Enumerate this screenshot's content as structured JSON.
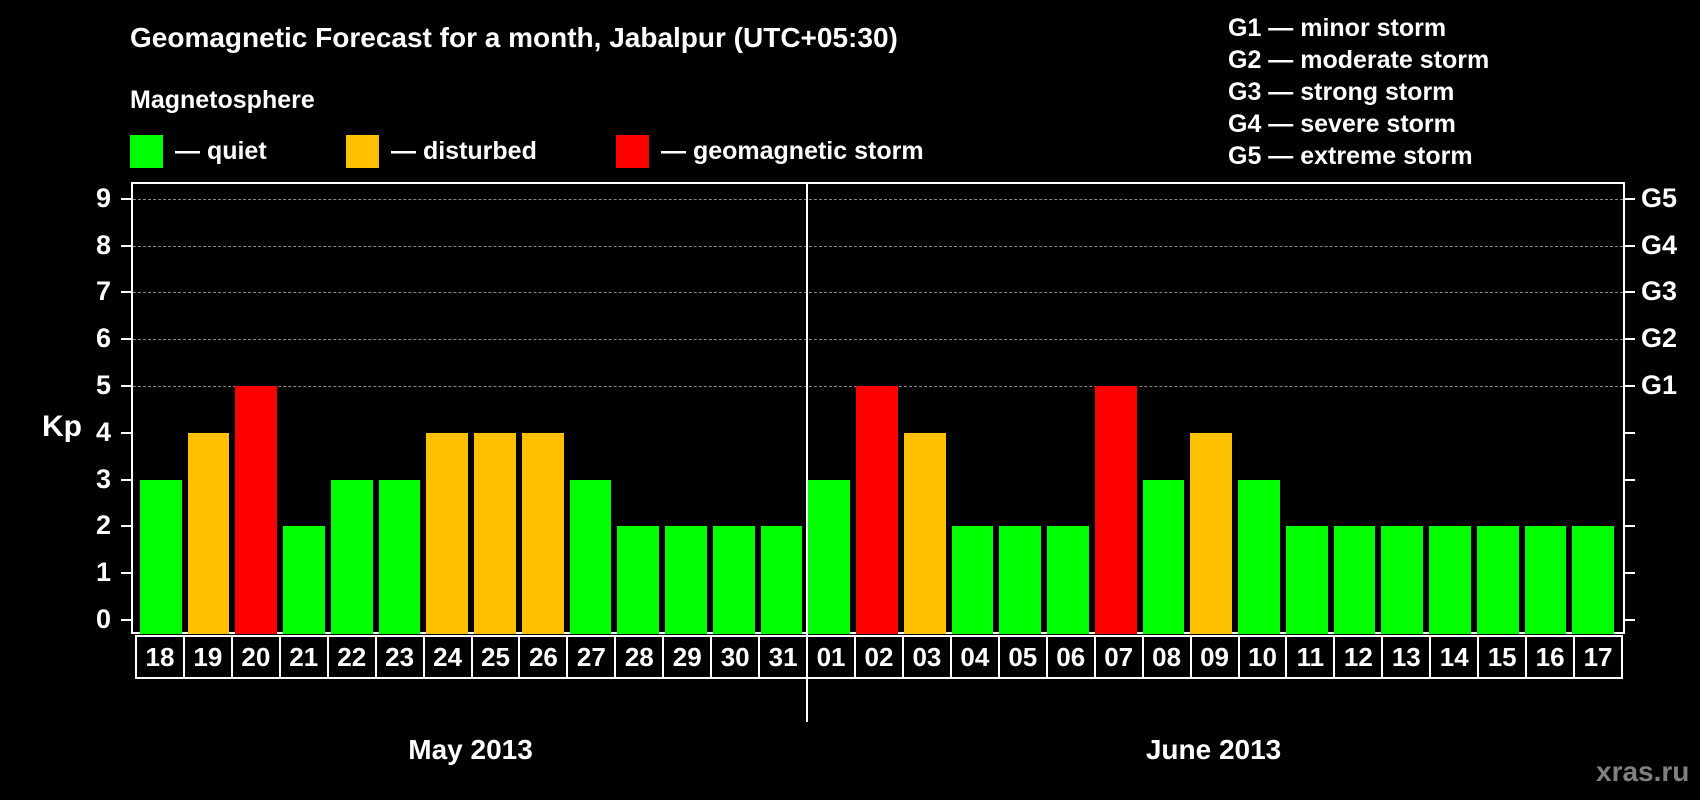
{
  "title": "Geomagnetic Forecast for a month, Jabalpur (UTC+05:30)",
  "legend": {
    "heading": "Magnetosphere",
    "items": [
      {
        "label": "— quiet",
        "color": "#00ff00"
      },
      {
        "label": "— disturbed",
        "color": "#ffc000"
      },
      {
        "label": "— geomagnetic storm",
        "color": "#ff0000"
      }
    ]
  },
  "g_scale": [
    "G1 — minor storm",
    "G2 — moderate storm",
    "G3 — strong storm",
    "G4 — severe storm",
    "G5 — extreme storm"
  ],
  "watermark": "xras.ru",
  "chart_data": {
    "type": "bar",
    "title": "Geomagnetic Forecast for a month, Jabalpur (UTC+05:30)",
    "ylabel": "Kp",
    "xlabel": "",
    "ylim": [
      0,
      9
    ],
    "yticks": [
      0,
      1,
      2,
      3,
      4,
      5,
      6,
      7,
      8,
      9
    ],
    "right_axis_labels": {
      "5": "G1",
      "6": "G2",
      "7": "G3",
      "8": "G4",
      "9": "G5"
    },
    "grid": "dashed horizontal at 5-9",
    "months": [
      {
        "label": "May 2013",
        "days": [
          "18",
          "19",
          "20",
          "21",
          "22",
          "23",
          "24",
          "25",
          "26",
          "27",
          "28",
          "29",
          "30",
          "31"
        ]
      },
      {
        "label": "June 2013",
        "days": [
          "01",
          "02",
          "03",
          "04",
          "05",
          "06",
          "07",
          "08",
          "09",
          "10",
          "11",
          "12",
          "13",
          "14",
          "15",
          "16",
          "17"
        ]
      }
    ],
    "categories": [
      "18",
      "19",
      "20",
      "21",
      "22",
      "23",
      "24",
      "25",
      "26",
      "27",
      "28",
      "29",
      "30",
      "31",
      "01",
      "02",
      "03",
      "04",
      "05",
      "06",
      "07",
      "08",
      "09",
      "10",
      "11",
      "12",
      "13",
      "14",
      "15",
      "16",
      "17"
    ],
    "values": [
      3,
      4,
      5,
      2,
      3,
      3,
      4,
      4,
      4,
      3,
      2,
      2,
      2,
      2,
      3,
      5,
      4,
      2,
      2,
      2,
      5,
      3,
      4,
      3,
      2,
      2,
      2,
      2,
      2,
      2,
      2
    ],
    "status": [
      "quiet",
      "disturbed",
      "storm",
      "quiet",
      "quiet",
      "quiet",
      "disturbed",
      "disturbed",
      "disturbed",
      "quiet",
      "quiet",
      "quiet",
      "quiet",
      "quiet",
      "quiet",
      "storm",
      "disturbed",
      "quiet",
      "quiet",
      "quiet",
      "storm",
      "quiet",
      "disturbed",
      "quiet",
      "quiet",
      "quiet",
      "quiet",
      "quiet",
      "quiet",
      "quiet",
      "quiet"
    ],
    "colors": {
      "quiet": "#00ff00",
      "disturbed": "#ffc000",
      "storm": "#ff0000"
    }
  }
}
